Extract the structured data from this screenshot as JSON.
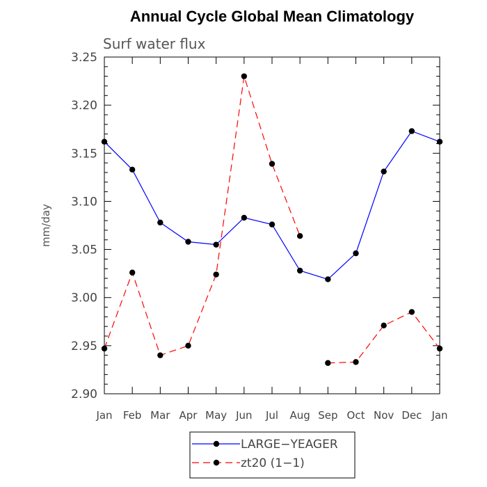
{
  "chart_data": {
    "type": "line",
    "title": "Annual Cycle Global Mean Climatology",
    "subtitle": "Surf water flux",
    "ylabel": "mm/day",
    "xlabel": "",
    "categories": [
      "Jan",
      "Feb",
      "Mar",
      "Apr",
      "May",
      "Jun",
      "Jul",
      "Aug",
      "Sep",
      "Oct",
      "Nov",
      "Dec",
      "Jan"
    ],
    "ylim": [
      2.9,
      3.25
    ],
    "yticks": [
      "2.90",
      "2.95",
      "3.00",
      "3.05",
      "3.10",
      "3.15",
      "3.20",
      "3.25"
    ],
    "series": [
      {
        "name": "LARGE−YEAGER",
        "color": "#0000ff",
        "dash": "solid",
        "values": [
          3.162,
          3.133,
          3.078,
          3.058,
          3.055,
          3.083,
          3.076,
          3.028,
          3.019,
          3.046,
          3.131,
          3.173,
          3.162
        ]
      },
      {
        "name": "zt20 (1−1)",
        "color": "#ff0000",
        "dash": "dashed",
        "values": [
          2.947,
          3.026,
          2.94,
          2.95,
          3.024,
          3.23,
          3.139,
          3.064,
          2.932,
          2.933,
          2.971,
          2.985,
          2.947
        ],
        "gap_after_index": 7
      }
    ],
    "legend_position": "bottom-center",
    "grid": false
  }
}
